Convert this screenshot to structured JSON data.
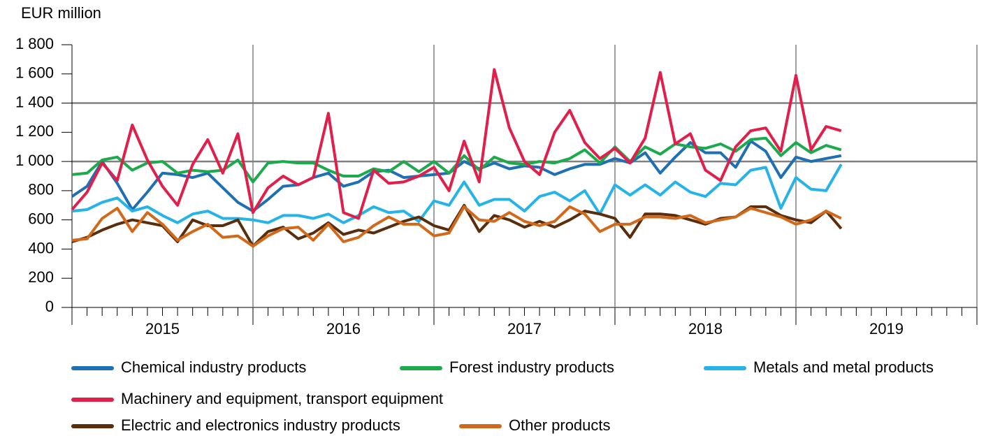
{
  "chart_data": {
    "type": "line",
    "y_axis_label": "EUR million",
    "categories": [
      null,
      null,
      null,
      null,
      null,
      null,
      "2015",
      null,
      null,
      null,
      null,
      null,
      null,
      null,
      null,
      null,
      null,
      null,
      "2016",
      null,
      null,
      null,
      null,
      null,
      null,
      null,
      null,
      null,
      null,
      null,
      "2017",
      null,
      null,
      null,
      null,
      null,
      null,
      null,
      null,
      null,
      null,
      null,
      "2018",
      null,
      null,
      null,
      null,
      null,
      null,
      null,
      null,
      null,
      null,
      null,
      "2019",
      null,
      null,
      null,
      null,
      null
    ],
    "ylim": [
      0,
      1800
    ],
    "yticks": [
      0,
      200,
      400,
      600,
      800,
      {
        "value": 1000,
        "label": "1 000"
      },
      {
        "value": 1200,
        "label": "1 200"
      },
      {
        "value": 1400,
        "label": "1 400"
      },
      {
        "value": 1600,
        "label": "1 600"
      },
      {
        "value": 1800,
        "label": "1 800"
      }
    ],
    "ygrid": [
      1000,
      1400
    ],
    "series": [
      {
        "name": "Chemical industry products",
        "color": "#1f6fb4",
        "values": [
          760,
          830,
          1000,
          850,
          670,
          790,
          920,
          910,
          890,
          920,
          820,
          720,
          660,
          740,
          830,
          840,
          890,
          920,
          830,
          860,
          930,
          940,
          890,
          900,
          910,
          920,
          1000,
          950,
          990,
          950,
          970,
          960,
          910,
          950,
          980,
          980,
          1020,
          990,
          1060,
          920,
          1030,
          1130,
          1060,
          1060,
          960,
          1140,
          1070,
          890,
          1030,
          1000,
          1020,
          1040,
          null,
          null,
          null,
          null,
          null,
          null,
          null,
          null
        ]
      },
      {
        "name": "Forest industry products",
        "color": "#1daa4c",
        "values": [
          910,
          920,
          1010,
          1030,
          940,
          990,
          1000,
          920,
          940,
          930,
          940,
          1010,
          860,
          990,
          1000,
          990,
          990,
          940,
          900,
          900,
          950,
          930,
          1000,
          930,
          1000,
          920,
          1040,
          940,
          1030,
          990,
          980,
          1000,
          990,
          1020,
          1080,
          990,
          1100,
          1000,
          1100,
          1050,
          1120,
          1100,
          1090,
          1120,
          1070,
          1150,
          1160,
          1040,
          1130,
          1060,
          1110,
          1080,
          null,
          null,
          null,
          null,
          null,
          null,
          null,
          null
        ]
      },
      {
        "name": "Metals and metal products",
        "color": "#25b3e8",
        "values": [
          660,
          670,
          720,
          750,
          660,
          690,
          630,
          580,
          640,
          660,
          610,
          610,
          600,
          580,
          630,
          630,
          610,
          640,
          580,
          630,
          690,
          650,
          660,
          590,
          730,
          700,
          860,
          700,
          740,
          740,
          660,
          760,
          790,
          730,
          800,
          640,
          840,
          770,
          840,
          770,
          860,
          790,
          760,
          850,
          840,
          940,
          960,
          680,
          890,
          810,
          800,
          980,
          null,
          null,
          null,
          null,
          null,
          null,
          null,
          null
        ]
      },
      {
        "name": "Machinery and equipment, transport equipment",
        "color": "#e0204a",
        "values": [
          670,
          790,
          990,
          870,
          1250,
          1010,
          830,
          700,
          980,
          1150,
          920,
          1190,
          650,
          820,
          900,
          840,
          890,
          1330,
          650,
          610,
          940,
          850,
          860,
          900,
          960,
          800,
          1140,
          860,
          1630,
          1230,
          1000,
          910,
          1200,
          1350,
          1130,
          1020,
          1090,
          990,
          1160,
          1610,
          1120,
          1190,
          940,
          870,
          1100,
          1210,
          1230,
          1070,
          1590,
          1080,
          1240,
          1210,
          null,
          null,
          null,
          null,
          null,
          null,
          null,
          null
        ]
      },
      {
        "name": "Electric and electronics industry products",
        "color": "#5a2d0c",
        "values": [
          450,
          480,
          530,
          570,
          600,
          580,
          560,
          450,
          600,
          560,
          560,
          600,
          420,
          520,
          550,
          470,
          510,
          580,
          500,
          530,
          510,
          550,
          590,
          620,
          560,
          530,
          700,
          520,
          630,
          600,
          550,
          590,
          550,
          600,
          660,
          640,
          610,
          480,
          640,
          640,
          630,
          600,
          570,
          610,
          620,
          690,
          690,
          630,
          600,
          580,
          660,
          540,
          null,
          null,
          null,
          null,
          null,
          null,
          null,
          null
        ]
      },
      {
        "name": "Other products",
        "color": "#d2691a",
        "values": [
          460,
          470,
          610,
          680,
          520,
          650,
          570,
          460,
          520,
          570,
          480,
          490,
          420,
          490,
          540,
          550,
          460,
          570,
          450,
          480,
          560,
          620,
          570,
          570,
          490,
          510,
          690,
          600,
          590,
          650,
          590,
          560,
          590,
          690,
          640,
          520,
          570,
          570,
          620,
          620,
          610,
          630,
          580,
          600,
          620,
          680,
          650,
          620,
          570,
          600,
          660,
          610,
          null,
          null,
          null,
          null,
          null,
          null,
          null,
          null
        ]
      }
    ]
  }
}
